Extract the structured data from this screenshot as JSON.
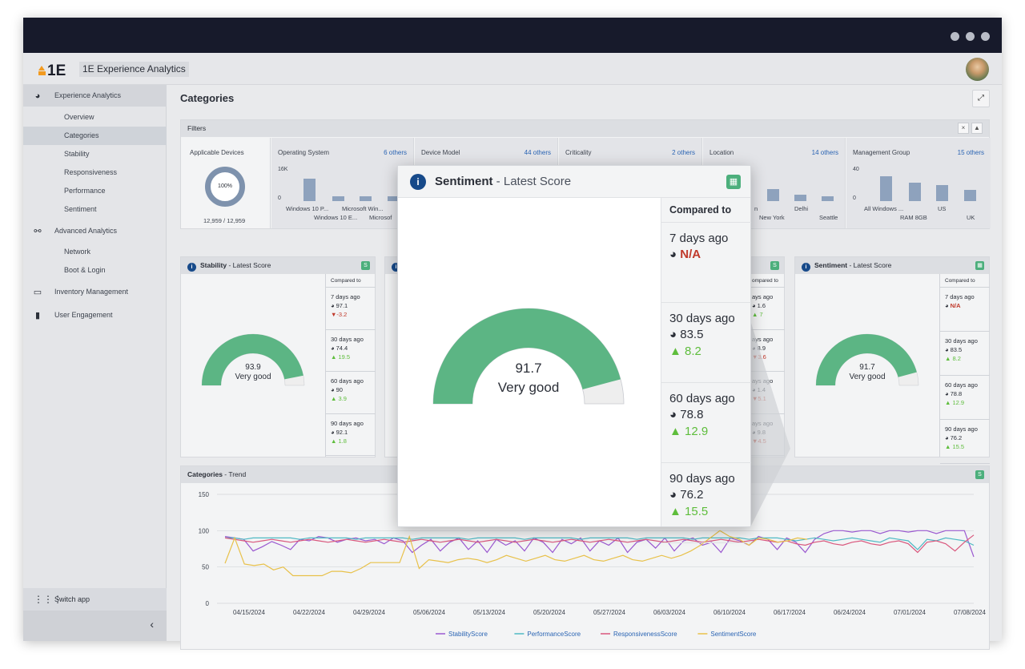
{
  "app": {
    "name": "1E Experience Analytics",
    "logo_text": "1E"
  },
  "sidebar": {
    "sections": [
      {
        "label": "Experience Analytics",
        "icon": "gauge-icon"
      },
      {
        "label": "Advanced Analytics",
        "icon": "binoculars-icon"
      },
      {
        "label": "Inventory Management",
        "icon": "monitor-icon"
      },
      {
        "label": "User Engagement",
        "icon": "clipboard-icon"
      }
    ],
    "experience_items": [
      "Overview",
      "Categories",
      "Stability",
      "Responsiveness",
      "Performance",
      "Sentiment"
    ],
    "advanced_items": [
      "Network",
      "Boot & Login"
    ],
    "switch_app": "Switch app",
    "collapse": "‹"
  },
  "page": {
    "title": "Categories",
    "expand_icon": "⤢"
  },
  "filters": {
    "title": "Filters",
    "close": "×",
    "collapse": "▲",
    "applicable": {
      "label": "Applicable Devices",
      "percent": "100%",
      "count": "12,959 / 12,959",
      "fraction": 1.0
    },
    "columns": [
      {
        "label": "Operating System",
        "others": "6 others",
        "axis_top": "16K",
        "axis_zero": "0",
        "labels1": [
          "Windows 10 P...",
          "Microsoft Win..."
        ],
        "labels2": [
          "Windows 10 E...",
          "Microsof"
        ]
      },
      {
        "label": "Device Model",
        "others": "44 others"
      },
      {
        "label": "Criticality",
        "others": "2 others"
      },
      {
        "label": "Location",
        "others": "14 others",
        "labels1": [
          "n",
          "Delhi"
        ],
        "labels2": [
          "New York",
          "Seattle"
        ]
      },
      {
        "label": "Management Group",
        "others": "15 others",
        "axis_top": "40",
        "axis_zero": "0",
        "labels1": [
          "All Windows ...",
          "US"
        ],
        "labels2": [
          "RAM 8GB",
          "UK"
        ]
      }
    ]
  },
  "stability_card": {
    "title": "Stability",
    "subtitle": "- Latest Score",
    "score": "93.9",
    "rating": "Very good",
    "fraction": 0.939,
    "compared_to": "Compared to",
    "rows": [
      {
        "period": "7 days ago",
        "value": "97.1",
        "change": "-3.2",
        "dir": "down"
      },
      {
        "period": "30 days ago",
        "value": "74.4",
        "change": "19.5",
        "dir": "up"
      },
      {
        "period": "60 days ago",
        "value": "90",
        "change": "3.9",
        "dir": "up"
      },
      {
        "period": "90 days ago",
        "value": "92.1",
        "change": "1.8",
        "dir": "up"
      }
    ]
  },
  "middle_card": {
    "compared_to": "ompared to",
    "rows": [
      {
        "period": "ays ago",
        "value": "1.6",
        "change": "7",
        "dir": "up"
      },
      {
        "period": "ays ago",
        "value": "8.9",
        "change": "3.6",
        "dir": "down"
      },
      {
        "period": "ays ago",
        "value": "1.4",
        "change": "5.1",
        "dir": "down"
      },
      {
        "period": "ays ago",
        "value": "9.8",
        "change": "4.5",
        "dir": "down"
      }
    ]
  },
  "sentiment_card": {
    "title": "Sentiment",
    "subtitle": "- Latest Score",
    "score": "91.7",
    "rating": "Very good",
    "fraction": 0.917,
    "compared_to": "Compared to",
    "rows": [
      {
        "period": "7 days ago",
        "value": "N/A",
        "change": "",
        "dir": "na"
      },
      {
        "period": "30 days ago",
        "value": "83.5",
        "change": "8.2",
        "dir": "up"
      },
      {
        "period": "60 days ago",
        "value": "78.8",
        "change": "12.9",
        "dir": "up"
      },
      {
        "period": "90 days ago",
        "value": "76.2",
        "change": "15.5",
        "dir": "up"
      }
    ]
  },
  "popup": {
    "title": "Sentiment",
    "subtitle": " - Latest Score",
    "info": "i",
    "badge": "S",
    "score": "91.7",
    "rating": "Very good",
    "fraction": 0.917,
    "compared_to": "Compared to",
    "rows": [
      {
        "period": "7 days ago",
        "value": "N/A",
        "change": "",
        "dir": "na"
      },
      {
        "period": "30 days ago",
        "value": "83.5",
        "change": "8.2",
        "dir": "up"
      },
      {
        "period": "60 days ago",
        "value": "78.8",
        "change": "12.9",
        "dir": "up"
      },
      {
        "period": "90 days ago",
        "value": "76.2",
        "change": "15.5",
        "dir": "up"
      }
    ]
  },
  "trend": {
    "title": "Categories",
    "subtitle": " - Trend",
    "badge": "S"
  },
  "colors": {
    "stability": "#9b59d0",
    "performance": "#4fb9c4",
    "responsiveness": "#d9577d",
    "sentiment": "#e8c14a",
    "gauge": "#5cb584"
  },
  "chart_data": {
    "type": "line",
    "title": "Categories - Trend",
    "y_ticks": [
      0,
      50,
      100,
      150
    ],
    "ylim": [
      0,
      150
    ],
    "x_ticks": [
      "04/15/2024",
      "04/22/2024",
      "04/29/2024",
      "05/06/2024",
      "05/13/2024",
      "05/20/2024",
      "05/27/2024",
      "06/03/2024",
      "06/10/2024",
      "06/17/2024",
      "06/24/2024",
      "07/01/2024",
      "07/08/2024"
    ],
    "series": [
      {
        "name": "StabilityScore",
        "values": [
          92,
          90,
          88,
          72,
          78,
          85,
          80,
          74,
          88,
          86,
          92,
          90,
          84,
          88,
          90,
          86,
          88,
          82,
          90,
          86,
          70,
          80,
          88,
          72,
          84,
          90,
          74,
          86,
          70,
          88,
          80,
          86,
          72,
          90,
          84,
          70,
          88,
          82,
          90,
          72,
          86,
          80,
          90,
          70,
          84,
          88,
          76,
          90,
          72,
          86,
          90,
          80,
          84,
          70,
          90,
          86,
          80,
          92,
          88,
          74,
          90,
          84,
          70,
          88,
          96,
          100,
          100,
          98,
          100,
          100,
          96,
          100,
          100,
          98,
          100,
          100,
          96,
          100,
          100,
          100,
          64
        ]
      },
      {
        "name": "PerformanceScore",
        "values": [
          90,
          90,
          88,
          90,
          90,
          90,
          90,
          90,
          88,
          90,
          90,
          90,
          90,
          90,
          88,
          90,
          90,
          90,
          90,
          90,
          88,
          90,
          90,
          90,
          90,
          90,
          88,
          90,
          90,
          90,
          90,
          90,
          88,
          90,
          90,
          90,
          90,
          90,
          88,
          90,
          90,
          90,
          90,
          90,
          88,
          90,
          90,
          90,
          90,
          90,
          88,
          90,
          90,
          90,
          90,
          90,
          88,
          90,
          90,
          90,
          88,
          86,
          88,
          90,
          88,
          86,
          88,
          90,
          88,
          86,
          84,
          90,
          88,
          86,
          74,
          88,
          86,
          90,
          88,
          86,
          80
        ]
      },
      {
        "name": "ResponsivenessScore",
        "values": [
          90,
          88,
          86,
          84,
          86,
          88,
          86,
          84,
          86,
          88,
          86,
          84,
          86,
          88,
          86,
          84,
          86,
          88,
          86,
          84,
          86,
          88,
          86,
          84,
          86,
          88,
          86,
          84,
          86,
          88,
          86,
          84,
          86,
          88,
          86,
          84,
          86,
          88,
          86,
          84,
          86,
          88,
          86,
          84,
          86,
          88,
          86,
          84,
          86,
          88,
          86,
          84,
          86,
          88,
          86,
          84,
          86,
          88,
          86,
          84,
          86,
          82,
          80,
          84,
          86,
          82,
          80,
          84,
          86,
          82,
          80,
          84,
          86,
          82,
          70,
          84,
          86,
          82,
          72,
          84,
          94
        ]
      },
      {
        "name": "SentimentScore",
        "values": [
          55,
          90,
          54,
          52,
          54,
          46,
          50,
          38,
          38,
          38,
          38,
          44,
          44,
          42,
          48,
          56,
          56,
          56,
          56,
          92,
          48,
          60,
          58,
          56,
          60,
          62,
          60,
          56,
          60,
          66,
          62,
          58,
          62,
          66,
          60,
          58,
          62,
          66,
          60,
          58,
          62,
          66,
          60,
          58,
          62,
          66,
          62,
          66,
          72,
          80,
          90,
          100,
          92,
          88,
          80,
          90,
          88,
          84,
          86,
          90,
          88
        ]
      }
    ]
  }
}
